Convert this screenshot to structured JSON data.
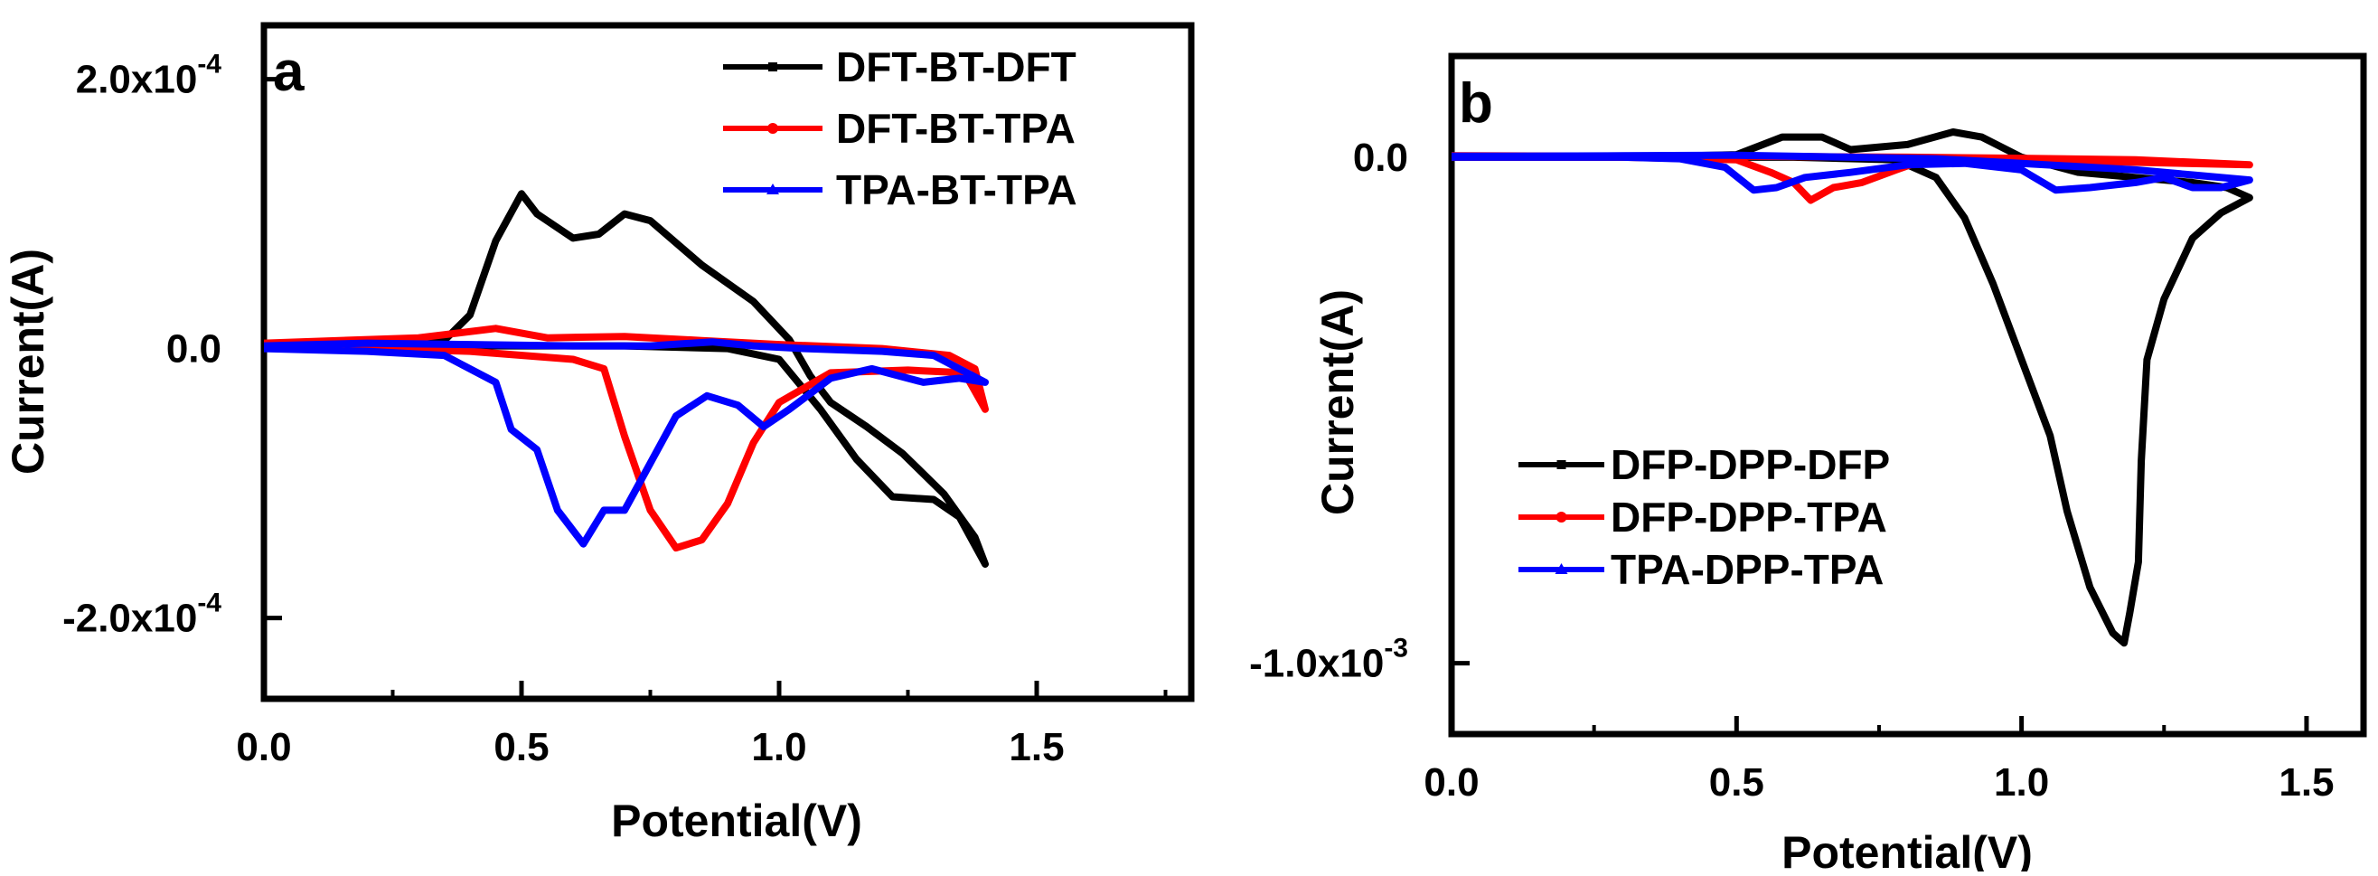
{
  "chart_data": [
    {
      "type": "line",
      "panel_label": "a",
      "xlabel": "Potential(V)",
      "ylabel": "Current(A)",
      "xlim": [
        0.0,
        1.8
      ],
      "ylim": [
        -0.00026,
        0.00024
      ],
      "x_ticks": [
        {
          "value": 0.0,
          "label": "0.0"
        },
        {
          "value": 0.5,
          "label": "0.5"
        },
        {
          "value": 1.0,
          "label": "1.0"
        },
        {
          "value": 1.5,
          "label": "1.5"
        }
      ],
      "y_ticks": [
        {
          "value": 0.0002,
          "mant": "2.0x10",
          "exp": "-4"
        },
        {
          "value": 0.0,
          "mant": "0.0",
          "exp": ""
        },
        {
          "value": -0.0002,
          "mant": "-2.0x10",
          "exp": "-4"
        }
      ],
      "legend_position": "top-right",
      "series": [
        {
          "name": "DFT-BT-DFT",
          "color": "#000000",
          "marker": "square",
          "points": [
            [
              0.0,
              2e-06
            ],
            [
              0.2,
              4e-06
            ],
            [
              0.35,
              6e-06
            ],
            [
              0.4,
              2.5e-05
            ],
            [
              0.45,
              8e-05
            ],
            [
              0.5,
              0.000115
            ],
            [
              0.53,
              0.0001
            ],
            [
              0.6,
              8.2e-05
            ],
            [
              0.65,
              8.5e-05
            ],
            [
              0.7,
              0.0001
            ],
            [
              0.75,
              9.5e-05
            ],
            [
              0.85,
              6.2e-05
            ],
            [
              0.95,
              3.5e-05
            ],
            [
              1.02,
              6.5e-06
            ],
            [
              1.06,
              -2e-05
            ],
            [
              1.1,
              -4e-05
            ],
            [
              1.17,
              -5.8e-05
            ],
            [
              1.24,
              -7.8e-05
            ],
            [
              1.32,
              -0.000108
            ],
            [
              1.38,
              -0.00014
            ],
            [
              1.4,
              -0.00016
            ],
            [
              1.35,
              -0.000125
            ],
            [
              1.3,
              -0.000112
            ],
            [
              1.22,
              -0.00011
            ],
            [
              1.15,
              -8.2e-05
            ],
            [
              1.08,
              -4.5e-05
            ],
            [
              1.0,
              -8e-06
            ],
            [
              0.9,
              0.0
            ],
            [
              0.7,
              2e-06
            ],
            [
              0.5,
              2e-06
            ],
            [
              0.3,
              2e-06
            ],
            [
              0.1,
              1e-06
            ],
            [
              0.0,
              1e-06
            ]
          ]
        },
        {
          "name": "DFT-BT-TPA",
          "color": "#ff0000",
          "marker": "circle",
          "points": [
            [
              0.0,
              4e-06
            ],
            [
              0.3,
              8e-06
            ],
            [
              0.45,
              1.5e-05
            ],
            [
              0.55,
              8e-06
            ],
            [
              0.7,
              9e-06
            ],
            [
              0.85,
              6e-06
            ],
            [
              1.0,
              3e-06
            ],
            [
              1.2,
              0.0
            ],
            [
              1.33,
              -5e-06
            ],
            [
              1.38,
              -1.5e-05
            ],
            [
              1.4,
              -4.5e-05
            ],
            [
              1.36,
              -1.8e-05
            ],
            [
              1.25,
              -1.6e-05
            ],
            [
              1.1,
              -1.8e-05
            ],
            [
              1.0,
              -4e-05
            ],
            [
              0.95,
              -7e-05
            ],
            [
              0.9,
              -0.000115
            ],
            [
              0.85,
              -0.000142
            ],
            [
              0.8,
              -0.000148
            ],
            [
              0.75,
              -0.00012
            ],
            [
              0.7,
              -6.5e-05
            ],
            [
              0.66,
              -1.5e-05
            ],
            [
              0.6,
              -8e-06
            ],
            [
              0.4,
              -2e-06
            ],
            [
              0.2,
              0.0
            ],
            [
              0.0,
              1e-06
            ]
          ]
        },
        {
          "name": "TPA-BT-TPA",
          "color": "#0000ff",
          "marker": "triangle",
          "points": [
            [
              0.0,
              0.0
            ],
            [
              0.2,
              -2e-06
            ],
            [
              0.35,
              -5e-06
            ],
            [
              0.45,
              -2.5e-05
            ],
            [
              0.48,
              -6e-05
            ],
            [
              0.53,
              -7.5e-05
            ],
            [
              0.57,
              -0.00012
            ],
            [
              0.62,
              -0.000145
            ],
            [
              0.66,
              -0.00012
            ],
            [
              0.7,
              -0.00012
            ],
            [
              0.75,
              -8.5e-05
            ],
            [
              0.8,
              -5e-05
            ],
            [
              0.86,
              -3.5e-05
            ],
            [
              0.92,
              -4.2e-05
            ],
            [
              0.97,
              -5.8e-05
            ],
            [
              1.02,
              -4.5e-05
            ],
            [
              1.1,
              -2.2e-05
            ],
            [
              1.18,
              -1.5e-05
            ],
            [
              1.28,
              -2.5e-05
            ],
            [
              1.35,
              -2.2e-05
            ],
            [
              1.4,
              -2.5e-05
            ],
            [
              1.3,
              -5e-06
            ],
            [
              1.2,
              -2e-06
            ],
            [
              1.05,
              0.0
            ],
            [
              0.95,
              2e-06
            ],
            [
              0.87,
              5e-06
            ],
            [
              0.75,
              2e-06
            ],
            [
              0.6,
              2e-06
            ],
            [
              0.4,
              3e-06
            ],
            [
              0.2,
              4e-06
            ],
            [
              0.0,
              2e-06
            ]
          ]
        }
      ]
    },
    {
      "type": "line",
      "panel_label": "b",
      "xlabel": "Potential(V)",
      "ylabel": "Current(A)",
      "xlim": [
        0.0,
        1.6
      ],
      "ylim": [
        -0.00114,
        0.0002
      ],
      "x_ticks": [
        {
          "value": 0.0,
          "label": "0.0"
        },
        {
          "value": 0.5,
          "label": "0.5"
        },
        {
          "value": 1.0,
          "label": "1.0"
        },
        {
          "value": 1.5,
          "label": "1.5"
        }
      ],
      "y_ticks": [
        {
          "value": 0.0,
          "mant": "0.0",
          "exp": ""
        },
        {
          "value": -0.001,
          "mant": "-1.0x10",
          "exp": "-3"
        }
      ],
      "legend_position": "center-left",
      "series": [
        {
          "name": "DFP-DPP-DFP",
          "color": "#000000",
          "marker": "square",
          "points": [
            [
              0.0,
              0.0
            ],
            [
              0.3,
              0.0
            ],
            [
              0.5,
              5e-06
            ],
            [
              0.58,
              4e-05
            ],
            [
              0.65,
              4e-05
            ],
            [
              0.7,
              1.5e-05
            ],
            [
              0.8,
              2.5e-05
            ],
            [
              0.88,
              5e-05
            ],
            [
              0.93,
              4e-05
            ],
            [
              1.0,
              0.0
            ],
            [
              1.1,
              -3e-05
            ],
            [
              1.2,
              -4e-05
            ],
            [
              1.3,
              -5e-05
            ],
            [
              1.36,
              -6e-05
            ],
            [
              1.4,
              -8e-05
            ],
            [
              1.35,
              -0.00011
            ],
            [
              1.3,
              -0.00016
            ],
            [
              1.25,
              -0.00028
            ],
            [
              1.22,
              -0.0004
            ],
            [
              1.21,
              -0.0006
            ],
            [
              1.205,
              -0.0008
            ],
            [
              1.19,
              -0.0009
            ],
            [
              1.18,
              -0.00096
            ],
            [
              1.16,
              -0.00094
            ],
            [
              1.12,
              -0.00085
            ],
            [
              1.08,
              -0.0007
            ],
            [
              1.05,
              -0.00055
            ],
            [
              1.0,
              -0.0004
            ],
            [
              0.95,
              -0.00025
            ],
            [
              0.9,
              -0.00012
            ],
            [
              0.85,
              -4e-05
            ],
            [
              0.78,
              -5e-06
            ],
            [
              0.6,
              0.0
            ],
            [
              0.3,
              0.0
            ],
            [
              0.0,
              0.0
            ]
          ]
        },
        {
          "name": "DFP-DPP-TPA",
          "color": "#ff0000",
          "marker": "circle",
          "points": [
            [
              0.0,
              0.0
            ],
            [
              0.3,
              0.0
            ],
            [
              0.5,
              -5e-06
            ],
            [
              0.56,
              -3e-05
            ],
            [
              0.6,
              -5e-05
            ],
            [
              0.63,
              -8.5e-05
            ],
            [
              0.67,
              -6e-05
            ],
            [
              0.72,
              -5e-05
            ],
            [
              0.78,
              -2.5e-05
            ],
            [
              0.83,
              -5e-06
            ],
            [
              1.0,
              -5e-06
            ],
            [
              1.2,
              -1e-05
            ],
            [
              1.4,
              -1.5e-05
            ],
            [
              1.2,
              -5e-06
            ],
            [
              1.0,
              -2e-06
            ],
            [
              0.8,
              0.0
            ],
            [
              0.5,
              2e-06
            ],
            [
              0.3,
              2e-06
            ],
            [
              0.0,
              3e-06
            ]
          ]
        },
        {
          "name": "TPA-DPP-TPA",
          "color": "#0000ff",
          "marker": "triangle",
          "points": [
            [
              0.0,
              0.0
            ],
            [
              0.3,
              0.0
            ],
            [
              0.4,
              -3e-06
            ],
            [
              0.48,
              -2e-05
            ],
            [
              0.53,
              -6.5e-05
            ],
            [
              0.57,
              -6e-05
            ],
            [
              0.62,
              -4e-05
            ],
            [
              0.7,
              -3e-05
            ],
            [
              0.8,
              -1.5e-05
            ],
            [
              0.9,
              -1.2e-05
            ],
            [
              1.0,
              -2.5e-05
            ],
            [
              1.06,
              -6.5e-05
            ],
            [
              1.12,
              -6e-05
            ],
            [
              1.2,
              -5e-05
            ],
            [
              1.25,
              -4e-05
            ],
            [
              1.3,
              -6e-05
            ],
            [
              1.35,
              -6e-05
            ],
            [
              1.4,
              -4.5e-05
            ],
            [
              1.3,
              -3.5e-05
            ],
            [
              1.2,
              -2.5e-05
            ],
            [
              1.0,
              -1.2e-05
            ],
            [
              0.85,
              -3e-06
            ],
            [
              0.7,
              0.0
            ],
            [
              0.5,
              4e-06
            ],
            [
              0.3,
              3e-06
            ],
            [
              0.1,
              2e-06
            ],
            [
              0.0,
              2e-06
            ]
          ]
        }
      ]
    }
  ]
}
